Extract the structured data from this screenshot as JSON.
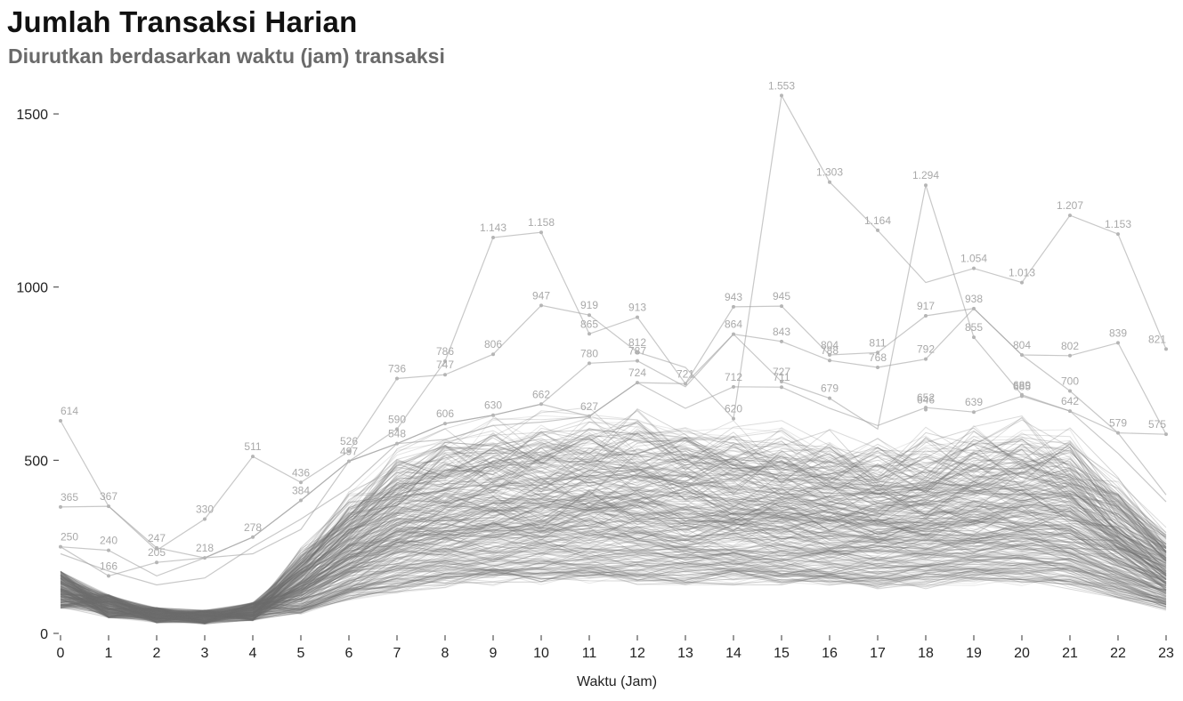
{
  "header": {
    "title": "Jumlah Transaksi Harian",
    "subtitle": "Diurutkan berdasarkan waktu (jam) transaksi"
  },
  "chart_data": {
    "type": "line",
    "title": "Jumlah Transaksi Harian",
    "subtitle": "Diurutkan berdasarkan waktu (jam) transaksi",
    "xlabel": "Waktu (Jam)",
    "ylabel": "",
    "x": [
      0,
      1,
      2,
      3,
      4,
      5,
      6,
      7,
      8,
      9,
      10,
      11,
      12,
      13,
      14,
      15,
      16,
      17,
      18,
      19,
      20,
      21,
      22,
      23
    ],
    "xlim": [
      0,
      23
    ],
    "ylim": [
      0,
      1600
    ],
    "y_ticks": [
      0,
      500,
      1000,
      1500
    ],
    "grid": false,
    "legend": "none",
    "line_color": "#6e6e6e",
    "label_color": "#a9a9a9",
    "highlighted_series": [
      {
        "values": [
          365,
          367,
          247,
          218,
          278,
          384,
          497,
          590,
          786,
          1143,
          1158,
          865,
          913,
          721,
          943,
          945,
          804,
          811,
          917,
          938,
          804,
          700,
          579,
          575
        ]
      },
      {
        "values": [
          614,
          367,
          240,
          330,
          511,
          436,
          526,
          736,
          747,
          806,
          947,
          919,
          812,
          768,
          620,
          1553,
          1303,
          1164,
          1013,
          1054,
          1013,
          1207,
          1153,
          821
        ]
      },
      {
        "values": [
          250,
          166,
          205,
          218,
          278,
          384,
          497,
          548,
          606,
          630,
          662,
          627,
          724,
          721,
          864,
          843,
          788,
          768,
          792,
          938,
          804,
          802,
          839,
          575
        ]
      },
      {
        "values": [
          250,
          240,
          166,
          218,
          230,
          300,
          497,
          548,
          606,
          630,
          662,
          780,
          787,
          712,
          864,
          727,
          679,
          590,
          1294,
          855,
          689,
          642,
          579,
          400
        ]
      },
      {
        "values": [
          230,
          180,
          140,
          160,
          250,
          330,
          420,
          548,
          560,
          600,
          610,
          627,
          724,
          650,
          712,
          711,
          650,
          600,
          652,
          639,
          685,
          642,
          520,
          380
        ]
      }
    ],
    "labels": [
      {
        "x": 0,
        "y": 614,
        "text": "614"
      },
      {
        "x": 0,
        "y": 365,
        "text": "365"
      },
      {
        "x": 0,
        "y": 250,
        "text": "250"
      },
      {
        "x": 1,
        "y": 367,
        "text": "367"
      },
      {
        "x": 1,
        "y": 240,
        "text": "240"
      },
      {
        "x": 1,
        "y": 166,
        "text": "166"
      },
      {
        "x": 2,
        "y": 247,
        "text": "247"
      },
      {
        "x": 2,
        "y": 205,
        "text": "205"
      },
      {
        "x": 3,
        "y": 330,
        "text": "330"
      },
      {
        "x": 3,
        "y": 218,
        "text": "218"
      },
      {
        "x": 4,
        "y": 511,
        "text": "511"
      },
      {
        "x": 4,
        "y": 278,
        "text": "278"
      },
      {
        "x": 5,
        "y": 436,
        "text": "436"
      },
      {
        "x": 5,
        "y": 384,
        "text": "384"
      },
      {
        "x": 6,
        "y": 526,
        "text": "526"
      },
      {
        "x": 6,
        "y": 497,
        "text": "497"
      },
      {
        "x": 7,
        "y": 736,
        "text": "736"
      },
      {
        "x": 7,
        "y": 590,
        "text": "590"
      },
      {
        "x": 7,
        "y": 548,
        "text": "548"
      },
      {
        "x": 8,
        "y": 786,
        "text": "786"
      },
      {
        "x": 8,
        "y": 747,
        "text": "747"
      },
      {
        "x": 8,
        "y": 606,
        "text": "606"
      },
      {
        "x": 9,
        "y": 1143,
        "text": "1.143"
      },
      {
        "x": 9,
        "y": 806,
        "text": "806"
      },
      {
        "x": 9,
        "y": 630,
        "text": "630"
      },
      {
        "x": 10,
        "y": 1158,
        "text": "1.158"
      },
      {
        "x": 10,
        "y": 947,
        "text": "947"
      },
      {
        "x": 10,
        "y": 662,
        "text": "662"
      },
      {
        "x": 11,
        "y": 919,
        "text": "919"
      },
      {
        "x": 11,
        "y": 865,
        "text": "865"
      },
      {
        "x": 11,
        "y": 780,
        "text": "780"
      },
      {
        "x": 11,
        "y": 627,
        "text": "627"
      },
      {
        "x": 12,
        "y": 913,
        "text": "913"
      },
      {
        "x": 12,
        "y": 812,
        "text": "812"
      },
      {
        "x": 12,
        "y": 787,
        "text": "787"
      },
      {
        "x": 12,
        "y": 724,
        "text": "724"
      },
      {
        "x": 13,
        "y": 721,
        "text": "721"
      },
      {
        "x": 14,
        "y": 943,
        "text": "943"
      },
      {
        "x": 14,
        "y": 864,
        "text": "864"
      },
      {
        "x": 14,
        "y": 712,
        "text": "712"
      },
      {
        "x": 14,
        "y": 620,
        "text": "620"
      },
      {
        "x": 15,
        "y": 1553,
        "text": "1.553"
      },
      {
        "x": 15,
        "y": 945,
        "text": "945"
      },
      {
        "x": 15,
        "y": 843,
        "text": "843"
      },
      {
        "x": 15,
        "y": 727,
        "text": "727"
      },
      {
        "x": 15,
        "y": 711,
        "text": "711"
      },
      {
        "x": 16,
        "y": 1303,
        "text": "1.303"
      },
      {
        "x": 16,
        "y": 804,
        "text": "804"
      },
      {
        "x": 16,
        "y": 788,
        "text": "788"
      },
      {
        "x": 16,
        "y": 679,
        "text": "679"
      },
      {
        "x": 17,
        "y": 1164,
        "text": "1.164"
      },
      {
        "x": 17,
        "y": 811,
        "text": "811"
      },
      {
        "x": 17,
        "y": 768,
        "text": "768"
      },
      {
        "x": 18,
        "y": 1294,
        "text": "1.294"
      },
      {
        "x": 18,
        "y": 917,
        "text": "917"
      },
      {
        "x": 18,
        "y": 792,
        "text": "792"
      },
      {
        "x": 18,
        "y": 652,
        "text": "652"
      },
      {
        "x": 18,
        "y": 646,
        "text": "646"
      },
      {
        "x": 19,
        "y": 1054,
        "text": "1.054"
      },
      {
        "x": 19,
        "y": 938,
        "text": "938"
      },
      {
        "x": 19,
        "y": 855,
        "text": "855"
      },
      {
        "x": 19,
        "y": 639,
        "text": "639"
      },
      {
        "x": 20,
        "y": 1013,
        "text": "1.013"
      },
      {
        "x": 20,
        "y": 804,
        "text": "804"
      },
      {
        "x": 20,
        "y": 689,
        "text": "689"
      },
      {
        "x": 20,
        "y": 685,
        "text": "685"
      },
      {
        "x": 21,
        "y": 1207,
        "text": "1.207"
      },
      {
        "x": 21,
        "y": 802,
        "text": "802"
      },
      {
        "x": 21,
        "y": 700,
        "text": "700"
      },
      {
        "x": 21,
        "y": 642,
        "text": "642"
      },
      {
        "x": 22,
        "y": 1153,
        "text": "1.153"
      },
      {
        "x": 22,
        "y": 839,
        "text": "839"
      },
      {
        "x": 22,
        "y": 579,
        "text": "579"
      },
      {
        "x": 23,
        "y": 821,
        "text": "821"
      },
      {
        "x": 23,
        "y": 575,
        "text": "575"
      }
    ],
    "bulk_series": {
      "count": 320,
      "typical_profile": [
        120,
        75,
        50,
        45,
        60,
        140,
        230,
        300,
        330,
        345,
        355,
        360,
        360,
        350,
        345,
        340,
        330,
        320,
        330,
        340,
        345,
        330,
        250,
        170
      ]
    }
  }
}
